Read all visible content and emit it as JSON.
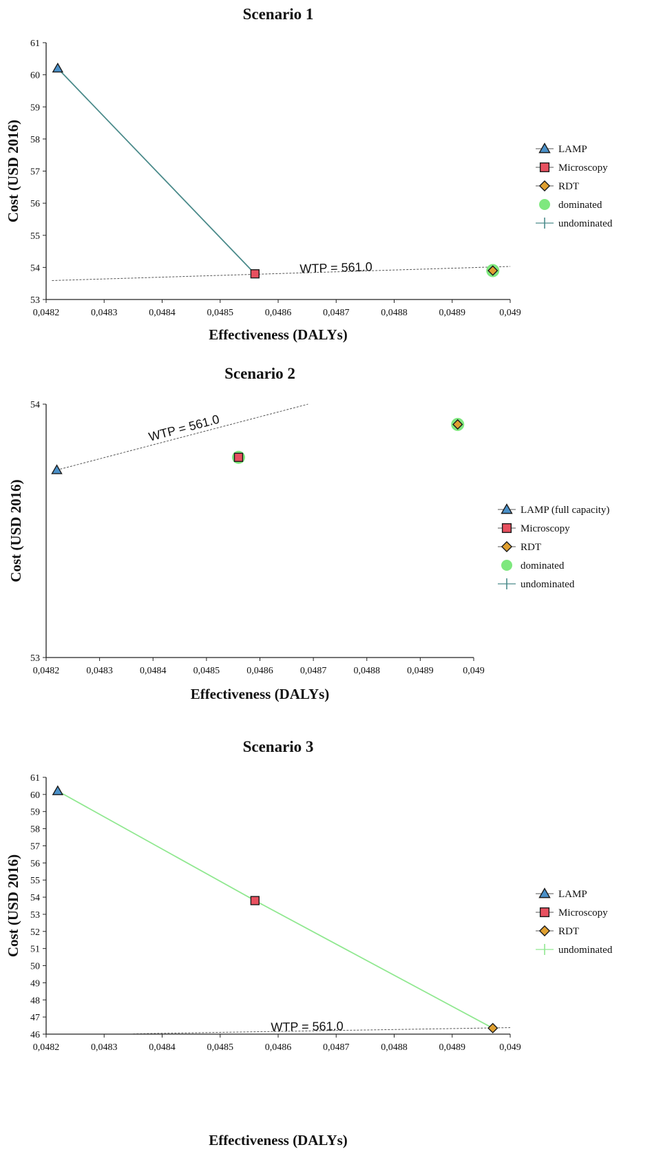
{
  "chart_data": [
    {
      "type": "scatter",
      "title": "Scenario 1",
      "xlabel": "Effectiveness (DALYs)",
      "ylabel": "Cost (USD 2016)",
      "xlim": [
        0.0482,
        0.049
      ],
      "ylim": [
        53,
        61
      ],
      "x_ticks": [
        "0,0482",
        "0,0483",
        "0,0484",
        "0,0485",
        "0,0486",
        "0,0487",
        "0,0488",
        "0,0489",
        "0,049"
      ],
      "y_ticks": [
        "53",
        "54",
        "55",
        "56",
        "57",
        "58",
        "59",
        "60",
        "61"
      ],
      "series": [
        {
          "name": "LAMP",
          "marker": "triangle",
          "color": "#4a90c8",
          "x": 0.04822,
          "y": 60.2,
          "dominated": false
        },
        {
          "name": "Microscopy",
          "marker": "square",
          "color": "#e8505f",
          "x": 0.04856,
          "y": 53.8,
          "dominated": false
        },
        {
          "name": "RDT",
          "marker": "diamond",
          "color": "#e0a030",
          "x": 0.04897,
          "y": 53.9,
          "dominated": true
        }
      ],
      "frontier": {
        "x": [
          0.04822,
          0.04856
        ],
        "y": [
          60.2,
          53.8
        ],
        "color": "#4a8a8a"
      },
      "wtp_line": {
        "x": [
          0.04821,
          0.049
        ],
        "y": [
          53.59,
          54.03
        ],
        "label": "WTP = 561.0",
        "label_at": [
          0.0487,
          53.86
        ]
      },
      "legend": [
        {
          "label": "LAMP",
          "kind": "triangle",
          "color": "#4a90c8"
        },
        {
          "label": "Microscopy",
          "kind": "square",
          "color": "#e8505f"
        },
        {
          "label": "RDT",
          "kind": "diamond",
          "color": "#e0a030"
        },
        {
          "label": "dominated",
          "kind": "circle",
          "color": "#7ee87e"
        },
        {
          "label": "undominated",
          "kind": "cross",
          "color": "#4a8a8a"
        }
      ]
    },
    {
      "type": "scatter",
      "title": "Scenario 2",
      "xlabel": "Effectiveness (DALYs)",
      "ylabel": "Cost (USD 2016)",
      "xlim": [
        0.0482,
        0.049
      ],
      "ylim": [
        53,
        54
      ],
      "x_ticks": [
        "0,0482",
        "0,0483",
        "0,0484",
        "0,0485",
        "0,0486",
        "0,0487",
        "0,0488",
        "0,0489",
        "0,049"
      ],
      "y_ticks": [
        "53",
        "54"
      ],
      "series": [
        {
          "name": "LAMP (full capacity)",
          "marker": "triangle",
          "color": "#4a90c8",
          "x": 0.04822,
          "y": 53.74,
          "dominated": false
        },
        {
          "name": "Microscopy",
          "marker": "square",
          "color": "#e8505f",
          "x": 0.04856,
          "y": 53.79,
          "dominated": true
        },
        {
          "name": "RDT",
          "marker": "diamond",
          "color": "#e0a030",
          "x": 0.04897,
          "y": 53.92,
          "dominated": true
        }
      ],
      "frontier": null,
      "wtp_line": {
        "x": [
          0.04822,
          0.04869
        ],
        "y": [
          53.74,
          54.0
        ],
        "label": "WTP = 561.0",
        "label_at": [
          0.04846,
          53.89
        ]
      },
      "legend": [
        {
          "label": "LAMP (full capacity)",
          "kind": "triangle",
          "color": "#4a90c8"
        },
        {
          "label": "Microscopy",
          "kind": "square",
          "color": "#e8505f"
        },
        {
          "label": "RDT",
          "kind": "diamond",
          "color": "#e0a030"
        },
        {
          "label": "dominated",
          "kind": "circle",
          "color": "#7ee87e"
        },
        {
          "label": "undominated",
          "kind": "cross",
          "color": "#4a8a8a"
        }
      ]
    },
    {
      "type": "scatter",
      "title": "Scenario 3",
      "xlabel": "Effectiveness (DALYs)",
      "ylabel": "Cost (USD 2016)",
      "xlim": [
        0.0482,
        0.049
      ],
      "ylim": [
        46,
        61
      ],
      "x_ticks": [
        "0,0482",
        "0,0483",
        "0,0484",
        "0,0485",
        "0,0486",
        "0,0487",
        "0,0488",
        "0,0489",
        "0,049"
      ],
      "y_ticks": [
        "46",
        "47",
        "48",
        "49",
        "50",
        "51",
        "52",
        "53",
        "54",
        "55",
        "56",
        "57",
        "58",
        "59",
        "60",
        "61"
      ],
      "series": [
        {
          "name": "LAMP",
          "marker": "triangle",
          "color": "#4a90c8",
          "x": 0.04822,
          "y": 60.2,
          "dominated": false
        },
        {
          "name": "Microscopy",
          "marker": "square",
          "color": "#e8505f",
          "x": 0.04856,
          "y": 53.8,
          "dominated": false
        },
        {
          "name": "RDT",
          "marker": "diamond",
          "color": "#e0a030",
          "x": 0.04897,
          "y": 46.35,
          "dominated": false
        }
      ],
      "frontier": {
        "x": [
          0.04822,
          0.04856,
          0.04897
        ],
        "y": [
          60.2,
          53.8,
          46.35
        ],
        "color": "#90e890"
      },
      "wtp_line": {
        "x": [
          0.04835,
          0.049
        ],
        "y": [
          46.02,
          46.38
        ],
        "label": "WTP = 561.0",
        "label_at": [
          0.04865,
          46.2
        ]
      },
      "legend": [
        {
          "label": "LAMP",
          "kind": "triangle",
          "color": "#4a90c8"
        },
        {
          "label": "Microscopy",
          "kind": "square",
          "color": "#e8505f"
        },
        {
          "label": "RDT",
          "kind": "diamond",
          "color": "#e0a030"
        },
        {
          "label": "undominated",
          "kind": "cross",
          "color": "#90e890"
        }
      ]
    }
  ]
}
